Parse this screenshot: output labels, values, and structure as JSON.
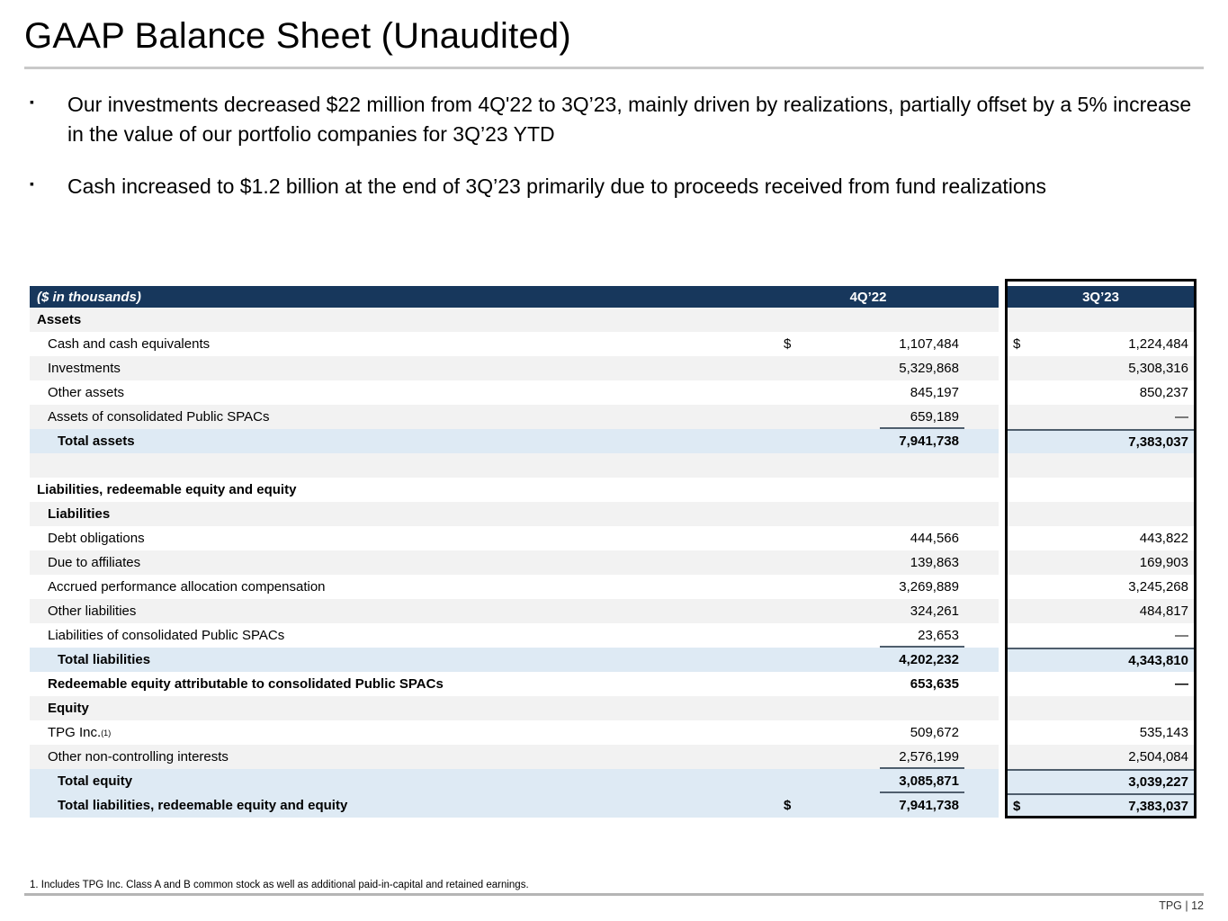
{
  "slide": {
    "title": "GAAP Balance Sheet (Unaudited)",
    "bullets": [
      "Our investments decreased $22 million from 4Q'22 to 3Q’23, mainly driven by realizations, partially offset by a 5% increase in the value of our portfolio companies for 3Q’23 YTD",
      "Cash increased to $1.2 billion at the end of 3Q’23 primarily due to proceeds received from fund realizations"
    ],
    "footnote": "1. Includes TPG Inc. Class A and B common stock as well as additional paid-in-capital and retained earnings.",
    "footer": "TPG | 12"
  },
  "colors": {
    "header_navy": "#17375c",
    "total_row_blue": "#deeaf4",
    "alt_row_gray": "#f2f2f2",
    "highlight_border": "#000000",
    "rule": "#4f5e6d"
  },
  "table": {
    "caption": "($ in thousands)",
    "columns": [
      "4Q’22",
      "3Q’23"
    ],
    "rows": [
      {
        "label": "Assets",
        "bold": true,
        "indent": 0,
        "bg": "gray",
        "q4d": "",
        "q4": "",
        "q3d": "",
        "q3": ""
      },
      {
        "label": "Cash and cash equivalents",
        "indent": 1,
        "bg": "white",
        "q4d": "$",
        "q4": "1,107,484",
        "q3d": "$",
        "q3": "1,224,484"
      },
      {
        "label": "Investments",
        "indent": 1,
        "bg": "gray",
        "q4d": "",
        "q4": "5,329,868",
        "q3d": "",
        "q3": "5,308,316"
      },
      {
        "label": "Other assets",
        "indent": 1,
        "bg": "white",
        "q4d": "",
        "q4": "845,197",
        "q3d": "",
        "q3": "850,237"
      },
      {
        "label": "Assets of consolidated Public SPACs",
        "indent": 1,
        "bg": "gray",
        "q4d": "",
        "q4": "659,189",
        "q3d": "",
        "q3": "—"
      },
      {
        "label": "Total assets",
        "bold": true,
        "indent": 2,
        "bg": "blue",
        "q4d": "",
        "q4": "7,941,738",
        "q3d": "",
        "q3": "7,383,037",
        "rule": true
      },
      {
        "label": "",
        "spacer": true,
        "bg": "gray",
        "q4d": "",
        "q4": "",
        "q3d": "",
        "q3": ""
      },
      {
        "label": "Liabilities, redeemable equity and equity",
        "bold": true,
        "indent": 0,
        "bg": "white",
        "q4d": "",
        "q4": "",
        "q3d": "",
        "q3": ""
      },
      {
        "label": "Liabilities",
        "bold": true,
        "indent": 1,
        "bg": "gray",
        "q4d": "",
        "q4": "",
        "q3d": "",
        "q3": ""
      },
      {
        "label": "Debt obligations",
        "indent": 1,
        "bg": "white",
        "q4d": "",
        "q4": "444,566",
        "q3d": "",
        "q3": "443,822"
      },
      {
        "label": "Due to affiliates",
        "indent": 1,
        "bg": "gray",
        "q4d": "",
        "q4": "139,863",
        "q3d": "",
        "q3": "169,903"
      },
      {
        "label": "Accrued performance allocation compensation",
        "indent": 1,
        "bg": "white",
        "q4d": "",
        "q4": "3,269,889",
        "q3d": "",
        "q3": "3,245,268"
      },
      {
        "label": "Other liabilities",
        "indent": 1,
        "bg": "gray",
        "q4d": "",
        "q4": "324,261",
        "q3d": "",
        "q3": "484,817"
      },
      {
        "label": "Liabilities of consolidated Public SPACs",
        "indent": 1,
        "bg": "white",
        "q4d": "",
        "q4": "23,653",
        "q3d": "",
        "q3": "—"
      },
      {
        "label": "Total liabilities",
        "bold": true,
        "indent": 2,
        "bg": "blue",
        "q4d": "",
        "q4": "4,202,232",
        "q3d": "",
        "q3": "4,343,810",
        "rule": true
      },
      {
        "label": "Redeemable equity attributable to consolidated Public SPACs",
        "bold": true,
        "indent": 1,
        "bg": "white",
        "q4d": "",
        "q4": "653,635",
        "q3d": "",
        "q3": "—"
      },
      {
        "label": "Equity",
        "bold": true,
        "indent": 1,
        "bg": "gray",
        "q4d": "",
        "q4": "",
        "q3d": "",
        "q3": ""
      },
      {
        "label": "TPG Inc.",
        "sup": "(1)",
        "indent": 1,
        "bg": "white",
        "q4d": "",
        "q4": "509,672",
        "q3d": "",
        "q3": "535,143"
      },
      {
        "label": "Other non-controlling interests",
        "indent": 1,
        "bg": "gray",
        "q4d": "",
        "q4": "2,576,199",
        "q3d": "",
        "q3": "2,504,084"
      },
      {
        "label": "Total equity",
        "bold": true,
        "indent": 2,
        "bg": "blue",
        "q4d": "",
        "q4": "3,085,871",
        "q3d": "",
        "q3": "3,039,227",
        "rule": true
      },
      {
        "label": "Total liabilities, redeemable equity and equity",
        "bold": true,
        "indent": 2,
        "bg": "blue",
        "q4d": "$",
        "q4": "7,941,738",
        "q3d": "$",
        "q3": "7,383,037",
        "rule": true
      }
    ]
  }
}
